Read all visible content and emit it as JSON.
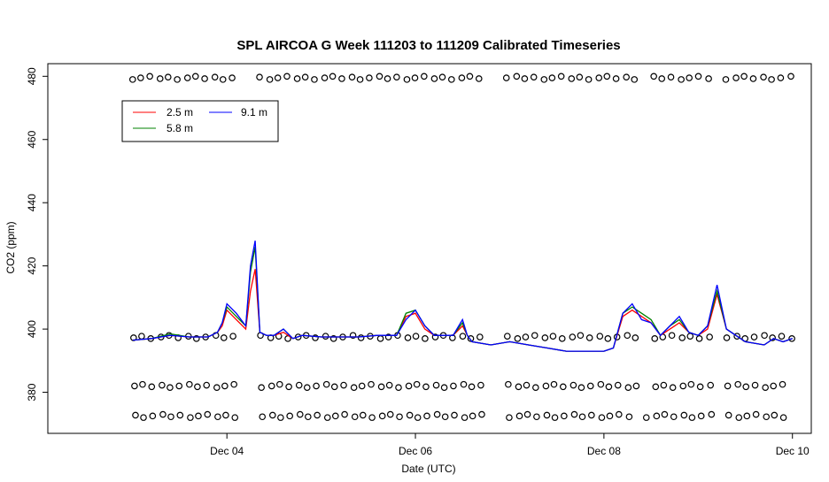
{
  "chart_data": {
    "type": "line",
    "title": "SPL AIRCOA G  Week 111203 to 111209  Calibrated Timeseries",
    "xlabel": "Date (UTC)",
    "ylabel": "CO2 (ppm)",
    "x_ticks": [
      "Dec 04",
      "Dec 06",
      "Dec 08",
      "Dec 10"
    ],
    "y_ticks": [
      380,
      400,
      420,
      440,
      460,
      480
    ],
    "xlim": [
      2.1,
      10.2
    ],
    "ylim": [
      367,
      484
    ],
    "grid": false,
    "legend_position": "top-left",
    "series": [
      {
        "name": "2.5 m",
        "color": "#ff0000",
        "x": [
          3.0,
          3.2,
          3.4,
          3.6,
          3.8,
          3.9,
          3.95,
          4.0,
          4.1,
          4.2,
          4.25,
          4.3,
          4.35,
          4.42,
          4.5,
          4.6,
          4.7,
          4.8,
          5.0,
          5.2,
          5.4,
          5.6,
          5.8,
          5.9,
          6.0,
          6.1,
          6.2,
          6.4,
          6.5,
          6.55,
          6.6,
          6.8,
          7.0,
          7.2,
          7.4,
          7.6,
          7.8,
          8.0,
          8.1,
          8.2,
          8.3,
          8.4,
          8.5,
          8.6,
          8.7,
          8.8,
          8.9,
          9.0,
          9.1,
          9.2,
          9.3,
          9.5,
          9.7,
          9.8,
          9.9,
          10.0
        ],
        "y": [
          396.5,
          397,
          398,
          397.5,
          397.5,
          399,
          401,
          406,
          403,
          400,
          412,
          419,
          399,
          398,
          398,
          399,
          397,
          398,
          397.5,
          397.5,
          397.5,
          398,
          398,
          404,
          405,
          400,
          398,
          398,
          401,
          398,
          396,
          395,
          396,
          395,
          394,
          393,
          393,
          393,
          394,
          404,
          406,
          404,
          402,
          398,
          400,
          402,
          399,
          398,
          400,
          411,
          400,
          396,
          395,
          397,
          396,
          397
        ]
      },
      {
        "name": "5.8 m",
        "color": "#008000",
        "x": [
          3.0,
          3.2,
          3.4,
          3.6,
          3.8,
          3.9,
          3.95,
          4.0,
          4.1,
          4.2,
          4.25,
          4.3,
          4.35,
          4.42,
          4.5,
          4.6,
          4.7,
          4.8,
          5.0,
          5.2,
          5.4,
          5.6,
          5.8,
          5.9,
          6.0,
          6.1,
          6.2,
          6.4,
          6.5,
          6.55,
          6.6,
          6.8,
          7.0,
          7.2,
          7.4,
          7.6,
          7.8,
          8.0,
          8.1,
          8.2,
          8.3,
          8.4,
          8.5,
          8.6,
          8.7,
          8.8,
          8.9,
          9.0,
          9.1,
          9.2,
          9.3,
          9.5,
          9.7,
          9.8,
          9.9,
          10.0
        ],
        "y": [
          396.5,
          397,
          398.5,
          397.5,
          397.5,
          399,
          402,
          407,
          404,
          401,
          418,
          426,
          399,
          398,
          398,
          400,
          397,
          398,
          397.5,
          397.5,
          397.5,
          398,
          398,
          405,
          406,
          401,
          398,
          398,
          402,
          398,
          396,
          395,
          396,
          395,
          394,
          393,
          393,
          393,
          394,
          405,
          407,
          405,
          403,
          398,
          401,
          403,
          399,
          398,
          401,
          412,
          400,
          396,
          395,
          397,
          396,
          397
        ]
      },
      {
        "name": "9.1 m",
        "color": "#0000ff",
        "x": [
          3.0,
          3.2,
          3.4,
          3.6,
          3.8,
          3.9,
          3.95,
          4.0,
          4.1,
          4.2,
          4.25,
          4.3,
          4.35,
          4.42,
          4.5,
          4.6,
          4.7,
          4.8,
          5.0,
          5.2,
          5.4,
          5.6,
          5.8,
          5.9,
          6.0,
          6.1,
          6.2,
          6.4,
          6.5,
          6.55,
          6.6,
          6.8,
          7.0,
          7.2,
          7.4,
          7.6,
          7.8,
          8.0,
          8.1,
          8.2,
          8.3,
          8.4,
          8.5,
          8.6,
          8.7,
          8.8,
          8.9,
          9.0,
          9.1,
          9.2,
          9.3,
          9.5,
          9.7,
          9.8,
          9.9,
          10.0
        ],
        "y": [
          396.5,
          397,
          398,
          397.5,
          397.5,
          399,
          402,
          408,
          405,
          401,
          420,
          428,
          399,
          398,
          398,
          400,
          397,
          398,
          397.5,
          397.5,
          397.5,
          398,
          398,
          403,
          406,
          401,
          398,
          398,
          403,
          398,
          396,
          395,
          396,
          395,
          394,
          393,
          393,
          393,
          394,
          405,
          408,
          403,
          402,
          398,
          401,
          404,
          399,
          398,
          401,
          414,
          400,
          396,
          395,
          397,
          396,
          397
        ]
      }
    ],
    "markers": {
      "symbol": "open-circle",
      "rows_ppm": [
        479.5,
        397.5,
        382,
        372.5
      ],
      "note_x_start": 3.0,
      "note_x_end": 10.0
    },
    "legend": [
      "2.5 m",
      "5.8 m",
      "9.1 m"
    ]
  }
}
